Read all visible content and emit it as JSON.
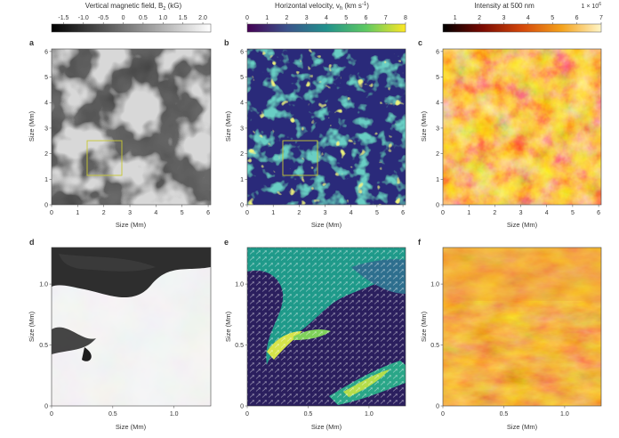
{
  "figure": {
    "panels": [
      {
        "letter": "a",
        "colorbar": {
          "title": "Vertical magnetic field, B",
          "title_sub": "z",
          "title_unit": " (kG)",
          "ticks": [
            "-1.5",
            "-1.0",
            "-0.5",
            "0",
            "0.5",
            "1.0",
            "1.5",
            "2.0"
          ],
          "colors": [
            "#000000",
            "#ffffff"
          ]
        },
        "xlabel": "Size (Mm)",
        "ylabel": "Size (Mm)",
        "xticks": [
          "0",
          "1",
          "2",
          "3",
          "4",
          "5",
          "6"
        ],
        "yticks": [
          "0",
          "1",
          "2",
          "3",
          "4",
          "5",
          "6"
        ],
        "range": [
          0,
          6.1
        ]
      },
      {
        "letter": "b",
        "colorbar": {
          "title": "Horizontal velocity, v",
          "title_sub": "h",
          "title_unit": " (km s",
          "title_sup": "-1",
          "title_end": ")",
          "ticks": [
            "0",
            "1",
            "2",
            "3",
            "4",
            "5",
            "6",
            "7",
            "8"
          ],
          "colors": [
            "#440154",
            "#3b528b",
            "#21918c",
            "#5ec962",
            "#fde725"
          ]
        },
        "xlabel": "Size (Mm)",
        "ylabel": "Size (Mm)",
        "xticks": [
          "0",
          "1",
          "2",
          "3",
          "4",
          "5",
          "6"
        ],
        "yticks": [
          "0",
          "1",
          "2",
          "3",
          "4",
          "5",
          "6"
        ],
        "range": [
          0,
          6.1
        ]
      },
      {
        "letter": "c",
        "colorbar": {
          "title": "Intensity at 500 nm",
          "multiplier": "1 × 10",
          "multiplier_sup": "6",
          "ticks": [
            "1",
            "2",
            "3",
            "4",
            "5",
            "6",
            "7"
          ],
          "colors": [
            "#000000",
            "#7a0a02",
            "#d4470a",
            "#f4a21c",
            "#fff6c8"
          ]
        },
        "xlabel": "Size (Mm)",
        "ylabel": "Size (Mm)",
        "xticks": [
          "0",
          "1",
          "2",
          "3",
          "4",
          "5",
          "6"
        ],
        "yticks": [
          "0",
          "1",
          "2",
          "3",
          "4",
          "5",
          "6"
        ],
        "range": [
          0,
          6.1
        ]
      },
      {
        "letter": "d",
        "xlabel": "Size (Mm)",
        "ylabel": "Size (Mm)",
        "xticks": [
          "0",
          "0.5",
          "1.0"
        ],
        "yticks": [
          "0",
          "0.5",
          "1.0"
        ],
        "range": [
          0,
          1.3
        ]
      },
      {
        "letter": "e",
        "xlabel": "Size (Mm)",
        "ylabel": "Size (Mm)",
        "xticks": [
          "0",
          "0.5",
          "1.0"
        ],
        "yticks": [
          "0",
          "0.5",
          "1.0"
        ],
        "range": [
          0,
          1.3
        ]
      },
      {
        "letter": "f",
        "xlabel": "Size (Mm)",
        "ylabel": "Size (Mm)",
        "xticks": [
          "0",
          "0.5",
          "1.0"
        ],
        "yticks": [
          "0",
          "0.5",
          "1.0"
        ],
        "range": [
          0,
          1.3
        ]
      }
    ],
    "zoom_box_color": "#c8c832"
  }
}
